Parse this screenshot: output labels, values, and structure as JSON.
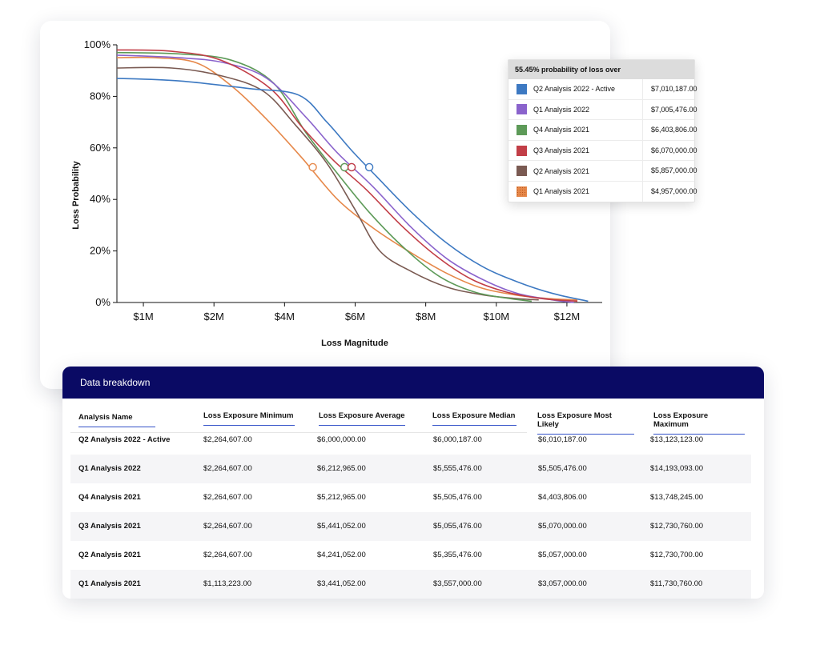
{
  "chart_data": {
    "type": "line",
    "xlabel": "Loss Magnitude",
    "ylabel": "Loss Probability",
    "xlim": [
      250000,
      14000000
    ],
    "ylim": [
      0,
      100
    ],
    "x_ticks": [
      {
        "value": 1000000,
        "label": "$1M"
      },
      {
        "value": 3000000,
        "label": "$2M"
      },
      {
        "value": 5000000,
        "label": "$4M"
      },
      {
        "value": 7000000,
        "label": "$6M"
      },
      {
        "value": 9000000,
        "label": "$8M"
      },
      {
        "value": 11000000,
        "label": "$10M"
      },
      {
        "value": 13000000,
        "label": "$12M"
      }
    ],
    "y_ticks": [
      {
        "value": 0,
        "label": "0%"
      },
      {
        "value": 20,
        "label": "20%"
      },
      {
        "value": 40,
        "label": "40%"
      },
      {
        "value": 60,
        "label": "60%"
      },
      {
        "value": 80,
        "label": "80%"
      },
      {
        "value": 100,
        "label": "100%"
      }
    ],
    "grid": false,
    "legend_position": "top-right",
    "legend_title": "55.45% probability of loss over",
    "series": [
      {
        "name": "Q2 Analysis 2022 - Active",
        "color": "#3d79c2",
        "swatch": "solid",
        "value": "$7,010,187.00",
        "marker": [
          7400000,
          52.5
        ],
        "points": [
          [
            250000,
            87
          ],
          [
            2000000,
            86
          ],
          [
            4000000,
            83
          ],
          [
            5400000,
            80.5
          ],
          [
            6200000,
            70
          ],
          [
            6900000,
            59
          ],
          [
            7600000,
            49
          ],
          [
            8600000,
            35
          ],
          [
            9600000,
            23
          ],
          [
            10600000,
            14
          ],
          [
            11600000,
            8
          ],
          [
            12600000,
            3.5
          ],
          [
            13600000,
            0.5
          ]
        ]
      },
      {
        "name": "Q1 Analysis 2022",
        "color": "#8a63cc",
        "swatch": "solid",
        "value": "$7,005,476.00",
        "marker": [
          6900000,
          52.5
        ],
        "points": [
          [
            250000,
            96
          ],
          [
            2000000,
            95
          ],
          [
            3300000,
            93
          ],
          [
            4500000,
            87
          ],
          [
            5600000,
            72
          ],
          [
            6500000,
            58
          ],
          [
            7500000,
            45
          ],
          [
            8600000,
            29
          ],
          [
            9600000,
            17
          ],
          [
            10600000,
            9
          ],
          [
            11600000,
            3.5
          ],
          [
            12600000,
            1
          ],
          [
            13200000,
            0
          ]
        ]
      },
      {
        "name": "Q4 Analysis 2021",
        "color": "#5d9a58",
        "swatch": "solid",
        "value": "$6,403,806.00",
        "marker": [
          6700000,
          52.5
        ],
        "points": [
          [
            250000,
            97
          ],
          [
            2000000,
            96.5
          ],
          [
            3500000,
            94
          ],
          [
            4700000,
            85
          ],
          [
            5600000,
            66
          ],
          [
            6500000,
            50
          ],
          [
            7400000,
            35
          ],
          [
            8400000,
            21
          ],
          [
            9400000,
            10
          ],
          [
            10400000,
            4
          ],
          [
            11400000,
            1.5
          ],
          [
            12000000,
            0.5
          ]
        ]
      },
      {
        "name": "Q3 Analysis 2021",
        "color": "#c23e47",
        "swatch": "solid",
        "value": "$6,070,000.00",
        "marker": [
          6900000,
          52.5
        ],
        "points": [
          [
            250000,
            98
          ],
          [
            1800000,
            97.5
          ],
          [
            3200000,
            94
          ],
          [
            4600000,
            83
          ],
          [
            5500000,
            68
          ],
          [
            6400000,
            55
          ],
          [
            7300000,
            44
          ],
          [
            8300000,
            30
          ],
          [
            9300000,
            18
          ],
          [
            10300000,
            9
          ],
          [
            11300000,
            4
          ],
          [
            12300000,
            1.5
          ],
          [
            13300000,
            0.5
          ]
        ]
      },
      {
        "name": "Q2 Analysis 2021",
        "color": "#7a5a52",
        "swatch": "solid",
        "value": "$5,857,000.00",
        "marker": [
          6700000,
          52.5
        ],
        "points": [
          [
            250000,
            91
          ],
          [
            1800000,
            91
          ],
          [
            3200000,
            88
          ],
          [
            4400000,
            82
          ],
          [
            5300000,
            69
          ],
          [
            6200000,
            54
          ],
          [
            7000000,
            36
          ],
          [
            7700000,
            20
          ],
          [
            8600000,
            12
          ],
          [
            9600000,
            6
          ],
          [
            10600000,
            3
          ],
          [
            11600000,
            1.5
          ],
          [
            12200000,
            1
          ]
        ]
      },
      {
        "name": "Q1 Analysis 2021",
        "color": "#e6884a",
        "swatch": "textured",
        "value": "$4,957,000.00",
        "marker": [
          5800000,
          52.5
        ],
        "points": [
          [
            250000,
            95
          ],
          [
            1300000,
            95
          ],
          [
            2500000,
            93
          ],
          [
            3500000,
            84
          ],
          [
            4500000,
            71
          ],
          [
            5500000,
            56
          ],
          [
            6500000,
            40
          ],
          [
            7500000,
            29
          ],
          [
            8500000,
            20
          ],
          [
            9500000,
            12
          ],
          [
            10500000,
            6
          ],
          [
            11500000,
            3
          ],
          [
            12500000,
            1.5
          ],
          [
            13300000,
            1
          ]
        ]
      }
    ]
  },
  "table": {
    "title": "Data breakdown",
    "columns": [
      "Analysis Name",
      "Loss Exposure Minimum",
      "Loss Exposure Average",
      "Loss Exposure Median",
      "Loss Exposure Most Likely",
      "Loss Exposure Maximum"
    ],
    "rows": [
      [
        "Q2 Analysis 2022 - Active",
        "$2,264,607.00",
        "$6,000,000.00",
        "$6,000,187.00",
        "$6,010,187.00",
        "$13,123,123.00"
      ],
      [
        "Q1 Analysis 2022",
        "$2,264,607.00",
        "$6,212,965.00",
        "$5,555,476.00",
        "$5,505,476.00",
        "$14,193,093.00"
      ],
      [
        "Q4 Analysis 2021",
        "$2,264,607.00",
        "$5,212,965.00",
        "$5,505,476.00",
        "$4,403,806.00",
        "$13,748,245.00"
      ],
      [
        "Q3 Analysis 2021",
        "$2,264,607.00",
        "$5,441,052.00",
        "$5,055,476.00",
        "$5,070,000.00",
        "$12,730,760.00"
      ],
      [
        "Q2 Analysis 2021",
        "$2,264,607.00",
        "$4,241,052.00",
        "$5,355,476.00",
        "$5,057,000.00",
        "$12,730,700.00"
      ],
      [
        "Q1 Analysis 2021",
        "$1,113,223.00",
        "$3,441,052.00",
        "$3,557,000.00",
        "$3,057,000.00",
        "$11,730,760.00"
      ]
    ]
  }
}
